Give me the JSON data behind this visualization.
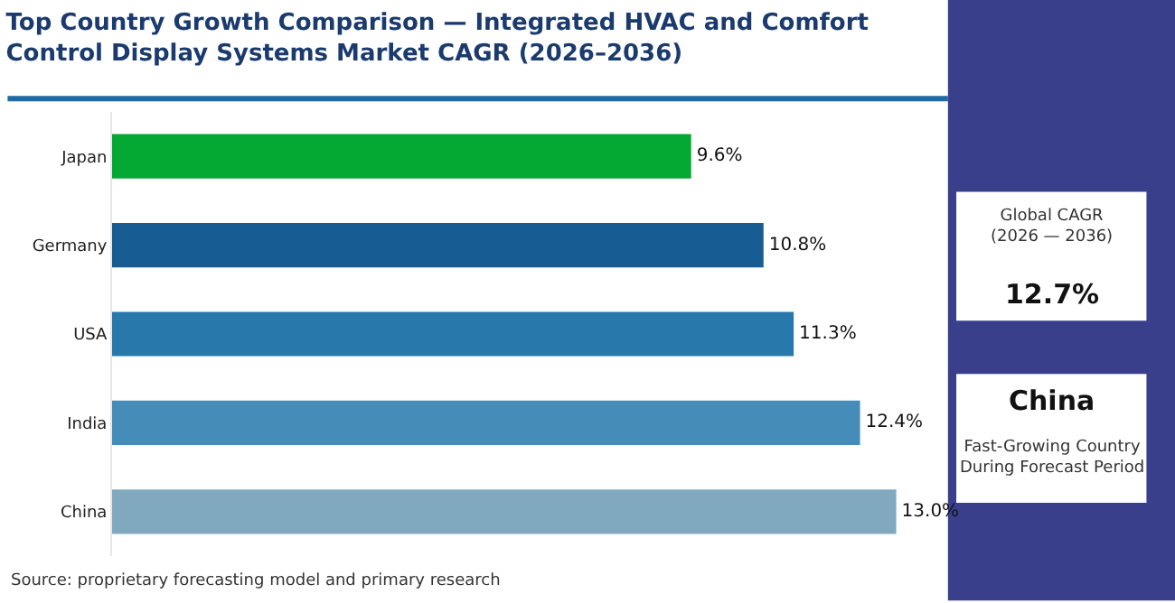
{
  "chart_data": {
    "type": "bar",
    "orientation": "horizontal",
    "title": "Top Country Growth Comparison — Integrated HVAC and Comfort Control Display Systems Market CAGR (2026–2036)",
    "categories": [
      "Japan",
      "Germany",
      "USA",
      "India",
      "China"
    ],
    "values": [
      9.6,
      10.8,
      11.3,
      12.4,
      13.0
    ],
    "colors": [
      "#03a932",
      "#175c92",
      "#2878ab",
      "#468cb8",
      "#80a9c0"
    ],
    "value_labels": [
      "9.6%",
      "10.8%",
      "11.3%",
      "12.4%",
      "13.0%"
    ],
    "tick_labels": "y",
    "annotations": [
      "Global CAGR (2026 — 2036)",
      "12.7%",
      "China",
      "Fast-Growing Country During Forecast Period",
      "Source: proprietary forecasting model and primary research"
    ]
  }
}
